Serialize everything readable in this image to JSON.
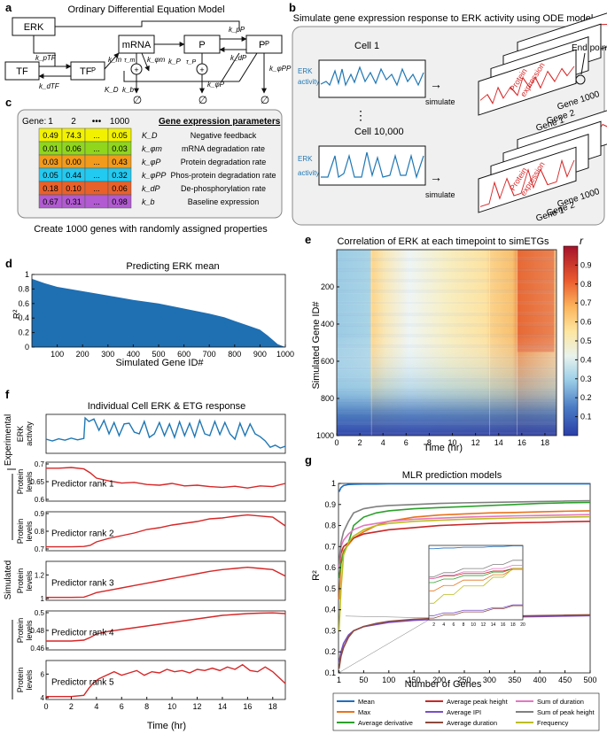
{
  "panel_a": {
    "letter": "a",
    "title": "Ordinary Differential Equation Model",
    "nodes": {
      "erk": "ERK",
      "mrna": "mRNA",
      "tf": "TF",
      "tfp": "TFᴾ",
      "p": "P",
      "pp": "Pᴾ"
    },
    "rates": {
      "k_ptf": "k_pTF",
      "k_dtf": "k_dTF",
      "k_m": "k_m",
      "tau_m": "τ_m",
      "k_phim": "k_φm",
      "k_d": "K_D",
      "k_b": "k_b",
      "k_p": "k_P",
      "tau_p": "τ_P",
      "k_phip": "k_φP",
      "k_pp": "k_pP",
      "k_dp": "k_dP",
      "k_phipp": "k_φPP"
    },
    "null_symbol": "∅"
  },
  "panel_b": {
    "letter": "b",
    "title": "Simulate gene expression response to ERK activity using ODE model",
    "cell1": "Cell 1",
    "cell2": "Cell 10,000",
    "erk_activity_line1": "ERK",
    "erk_activity_line2": "activity",
    "simulate": "simulate",
    "protein_line1": "Protein",
    "protein_line2": "expression",
    "gene1": "Gene 1",
    "gene2": "Gene 2",
    "gene1000": "Gene 1000",
    "end_point": "End point",
    "ellipsis": "⋮",
    "arrow": "→"
  },
  "panel_c": {
    "letter": "c",
    "gene_label": "Gene:",
    "columns": [
      "1",
      "2",
      "•••",
      "1000"
    ],
    "params_header": "Gene expression parameters",
    "rows": [
      {
        "values": [
          "0.49",
          "74.3",
          "...",
          "0.05"
        ],
        "symbol": "K_D",
        "desc": "Negative feedback",
        "color": "#f2f200"
      },
      {
        "values": [
          "0.01",
          "0.06",
          "...",
          "0.03"
        ],
        "symbol": "k_φm",
        "desc": "mRNA degradation rate",
        "color": "#8fd61c"
      },
      {
        "values": [
          "0.03",
          "0.00",
          "...",
          "0.43"
        ],
        "symbol": "k_φP",
        "desc": "Protein degradation rate",
        "color": "#f29a1b"
      },
      {
        "values": [
          "0.05",
          "0.44",
          "...",
          "0.32"
        ],
        "symbol": "k_φPP",
        "desc": "Phos-protein degradation rate",
        "color": "#22c9f0"
      },
      {
        "values": [
          "0.18",
          "0.10",
          "...",
          "0.06"
        ],
        "symbol": "k_dP",
        "desc": "De-phosphorylation rate",
        "color": "#e8612a"
      },
      {
        "values": [
          "0.67",
          "0.31",
          "...",
          "0.98"
        ],
        "symbol": "k_b",
        "desc": "Baseline expression",
        "color": "#b15ad1"
      }
    ],
    "caption": "Create 1000 genes with randomly assigned properties"
  },
  "panel_d": {
    "letter": "d",
    "chart_data": {
      "type": "area",
      "title": "Predicting ERK mean",
      "xlabel": "Simulated Gene ID#",
      "ylabel": "R²",
      "xlim": [
        0,
        1000
      ],
      "ylim": [
        0,
        1
      ],
      "xticks": [
        "100",
        "200",
        "300",
        "400",
        "500",
        "600",
        "700",
        "800",
        "900",
        "1000"
      ],
      "yticks": [
        "0",
        "0.2",
        "0.4",
        "0.6",
        "0.8",
        "1"
      ],
      "x": [
        0,
        50,
        100,
        200,
        300,
        400,
        500,
        600,
        700,
        760,
        800,
        850,
        900,
        930,
        950,
        970,
        1000
      ],
      "y": [
        0.94,
        0.88,
        0.83,
        0.77,
        0.71,
        0.65,
        0.6,
        0.53,
        0.46,
        0.41,
        0.36,
        0.3,
        0.24,
        0.16,
        0.1,
        0.04,
        0.0
      ],
      "color": "#1f6fb3"
    }
  },
  "panel_e": {
    "letter": "e",
    "chart_data": {
      "type": "heatmap",
      "title": "Correlation of ERK at each timepoint to simETGs",
      "xlabel": "Time (hr)",
      "ylabel": "Simulated Gene ID#",
      "xlim": [
        0,
        19
      ],
      "ylim": [
        0,
        1000
      ],
      "xticks": [
        "0",
        "2",
        "4",
        "6",
        "8",
        "10",
        "12",
        "14",
        "16",
        "18"
      ],
      "yticks": [
        "200",
        "400",
        "600",
        "800",
        "1000"
      ],
      "colorbar_label": "r",
      "colorbar_ticks": [
        "0.1",
        "0.2",
        "0.3",
        "0.4",
        "0.5",
        "0.6",
        "0.7",
        "0.8",
        "0.9"
      ],
      "colorbar_range": [
        0.0,
        1.0
      ],
      "transitions_hr": [
        3.0,
        13.2,
        15.6
      ]
    }
  },
  "panel_f": {
    "letter": "f",
    "title": "Individual Cell ERK & ETG response",
    "experimental_label": "Experimental",
    "simulated_label": "Simulated",
    "xlabel": "Time (hr)",
    "xticks": [
      "0",
      "2",
      "4",
      "6",
      "8",
      "10",
      "12",
      "14",
      "16",
      "18"
    ],
    "chart_data": [
      {
        "type": "line",
        "ylabel": "ERK activity",
        "color": "#1f77b4",
        "xlim": [
          0,
          19
        ],
        "yticks": [],
        "x": [
          0,
          0.5,
          1,
          1.5,
          2,
          2.5,
          3,
          3.1,
          3.4,
          3.8,
          4.2,
          4.6,
          5,
          5.4,
          5.8,
          6.2,
          6.6,
          7,
          7.4,
          7.8,
          8.2,
          8.6,
          9,
          9.4,
          9.8,
          10.2,
          10.6,
          11,
          11.4,
          11.8,
          12.2,
          12.6,
          13,
          13.4,
          13.8,
          14.2,
          14.6,
          15,
          15.4,
          15.8,
          16.2,
          16.6,
          17,
          17.4,
          17.8,
          18.2,
          18.6,
          19
        ],
        "y": [
          0.35,
          0.3,
          0.36,
          0.32,
          0.38,
          0.33,
          0.37,
          0.95,
          0.85,
          0.92,
          0.6,
          0.88,
          0.5,
          0.82,
          0.45,
          0.78,
          0.8,
          0.55,
          0.5,
          0.85,
          0.4,
          0.5,
          0.82,
          0.45,
          0.78,
          0.4,
          0.84,
          0.45,
          0.8,
          0.42,
          0.88,
          0.5,
          0.45,
          0.85,
          0.48,
          0.82,
          0.5,
          0.35,
          0.8,
          0.45,
          0.78,
          0.5,
          0.42,
          0.3,
          0.12,
          0.18,
          0.1,
          0.15
        ]
      },
      {
        "type": "line",
        "label": "Predictor rank 1",
        "ylabel": "Protein levels",
        "color": "#d62728",
        "xlim": [
          0,
          19
        ],
        "ylim": [
          0.6,
          0.7
        ],
        "yticks": [
          "0.6",
          "0.65",
          "0.7"
        ],
        "x": [
          0,
          1,
          2,
          3,
          3.5,
          4,
          5,
          6,
          7,
          8,
          9,
          10,
          11,
          12,
          13,
          14,
          15,
          16,
          17,
          18,
          19
        ],
        "y": [
          0.688,
          0.688,
          0.69,
          0.686,
          0.675,
          0.66,
          0.652,
          0.646,
          0.648,
          0.642,
          0.64,
          0.645,
          0.638,
          0.64,
          0.636,
          0.634,
          0.637,
          0.632,
          0.638,
          0.636,
          0.645
        ]
      },
      {
        "type": "line",
        "label": "Predictor rank 2",
        "ylabel": "Protein levels",
        "color": "#d62728",
        "xlim": [
          0,
          19
        ],
        "ylim": [
          0.7,
          0.9
        ],
        "yticks": [
          "0.7",
          "0.8",
          "0.9"
        ],
        "x": [
          0,
          1,
          2,
          3,
          3.5,
          4,
          5,
          6,
          7,
          8,
          9,
          10,
          11,
          12,
          13,
          14,
          15,
          16,
          17,
          18,
          19
        ],
        "y": [
          0.712,
          0.712,
          0.712,
          0.714,
          0.72,
          0.74,
          0.76,
          0.775,
          0.79,
          0.81,
          0.82,
          0.835,
          0.845,
          0.855,
          0.87,
          0.875,
          0.885,
          0.892,
          0.886,
          0.88,
          0.83
        ]
      },
      {
        "type": "line",
        "label": "Predictor rank 3",
        "ylabel": "Protein levels",
        "color": "#d62728",
        "xlim": [
          0,
          19
        ],
        "ylim": [
          1.0,
          1.3
        ],
        "yticks": [
          "1",
          "1.2"
        ],
        "x": [
          0,
          1,
          2,
          3,
          3.5,
          4,
          5,
          6,
          7,
          8,
          9,
          10,
          11,
          12,
          13,
          14,
          15,
          16,
          17,
          18,
          19
        ],
        "y": [
          1.01,
          1.01,
          1.01,
          1.012,
          1.03,
          1.05,
          1.07,
          1.09,
          1.11,
          1.13,
          1.15,
          1.17,
          1.19,
          1.21,
          1.23,
          1.245,
          1.255,
          1.265,
          1.255,
          1.245,
          1.19
        ]
      },
      {
        "type": "line",
        "label": "Predictor rank 4",
        "ylabel": "Protein levels",
        "color": "#d62728",
        "xlim": [
          0,
          19
        ],
        "ylim": [
          0.46,
          0.5
        ],
        "yticks": [
          "0.46",
          "0.48",
          "0.5"
        ],
        "x": [
          0,
          1,
          2,
          3,
          3.5,
          4,
          5,
          6,
          7,
          8,
          9,
          10,
          11,
          12,
          13,
          14,
          15,
          16,
          17,
          18,
          19
        ],
        "y": [
          0.468,
          0.468,
          0.468,
          0.469,
          0.472,
          0.476,
          0.479,
          0.481,
          0.483,
          0.485,
          0.487,
          0.489,
          0.491,
          0.493,
          0.495,
          0.497,
          0.498,
          0.499,
          0.4995,
          0.4998,
          0.499
        ]
      },
      {
        "type": "line",
        "label": "Predictor rank 5",
        "ylabel": "Protein levels",
        "color": "#d62728",
        "xlim": [
          0,
          19
        ],
        "ylim": [
          4,
          7
        ],
        "yticks": [
          "4",
          "6"
        ],
        "x": [
          0,
          1,
          2,
          3,
          3.4,
          3.8,
          4.2,
          4.8,
          5.4,
          6,
          6.6,
          7.2,
          7.8,
          8.4,
          9,
          9.6,
          10.2,
          10.8,
          11.4,
          12,
          12.6,
          13.2,
          13.8,
          14.4,
          15,
          15.6,
          16.2,
          16.8,
          17.4,
          18,
          18.6,
          19
        ],
        "y": [
          4.1,
          4.1,
          4.1,
          4.2,
          4.8,
          5.3,
          5.6,
          5.9,
          6.2,
          5.9,
          6.1,
          6.3,
          5.9,
          6.2,
          6.1,
          6.4,
          6.2,
          6.3,
          6.1,
          6.4,
          6.3,
          6.5,
          6.3,
          6.6,
          6.4,
          6.8,
          6.3,
          6.2,
          6.6,
          6.2,
          5.6,
          5.2
        ]
      }
    ]
  },
  "panel_g": {
    "letter": "g",
    "chart_data": {
      "type": "line",
      "title": "MLR prediction models",
      "xlabel": "Number of Genes",
      "ylabel": "R²",
      "xlim": [
        0,
        500
      ],
      "ylim": [
        0.1,
        1.0
      ],
      "xticks": [
        "1",
        "50",
        "100",
        "150",
        "200",
        "250",
        "300",
        "350",
        "400",
        "450",
        "500"
      ],
      "yticks": [
        "0.1",
        "0.2",
        "0.3",
        "0.4",
        "0.5",
        "0.6",
        "0.7",
        "0.8",
        "0.9",
        "1"
      ],
      "inset_xticks": [
        "2",
        "4",
        "6",
        "8",
        "10",
        "12",
        "14",
        "16",
        "18",
        "20"
      ],
      "x": [
        1,
        5,
        10,
        20,
        30,
        50,
        75,
        100,
        150,
        200,
        250,
        300,
        350,
        400,
        450,
        500
      ],
      "series": [
        {
          "name": "Mean",
          "color": "#1f6fc0",
          "values": [
            0.96,
            0.98,
            0.99,
            0.995,
            0.996,
            0.997,
            0.997,
            0.998,
            0.998,
            0.998,
            0.998,
            0.998,
            0.998,
            0.998,
            0.998,
            0.998
          ]
        },
        {
          "name": "Max",
          "color": "#e8731c",
          "values": [
            0.45,
            0.63,
            0.68,
            0.71,
            0.74,
            0.77,
            0.8,
            0.82,
            0.84,
            0.85,
            0.855,
            0.86,
            0.862,
            0.865,
            0.868,
            0.87
          ]
        },
        {
          "name": "Average derivative",
          "color": "#2ca02c",
          "values": [
            0.55,
            0.62,
            0.67,
            0.72,
            0.8,
            0.84,
            0.86,
            0.87,
            0.88,
            0.885,
            0.89,
            0.895,
            0.9,
            0.905,
            0.908,
            0.91
          ]
        },
        {
          "name": "Average peak height",
          "color": "#c82828",
          "values": [
            0.6,
            0.67,
            0.7,
            0.72,
            0.74,
            0.76,
            0.77,
            0.78,
            0.79,
            0.8,
            0.805,
            0.81,
            0.813,
            0.815,
            0.818,
            0.82
          ]
        },
        {
          "name": "Average IPI",
          "color": "#7a4fc8",
          "values": [
            0.15,
            0.2,
            0.24,
            0.28,
            0.3,
            0.32,
            0.33,
            0.34,
            0.35,
            0.355,
            0.36,
            0.363,
            0.366,
            0.368,
            0.37,
            0.372
          ]
        },
        {
          "name": "Average duration",
          "color": "#8c4b3c",
          "values": [
            0.12,
            0.18,
            0.22,
            0.27,
            0.3,
            0.32,
            0.335,
            0.345,
            0.355,
            0.36,
            0.365,
            0.368,
            0.37,
            0.372,
            0.374,
            0.376
          ]
        },
        {
          "name": "Sum of duration",
          "color": "#e377c2",
          "values": [
            0.6,
            0.7,
            0.73,
            0.76,
            0.78,
            0.8,
            0.81,
            0.82,
            0.83,
            0.835,
            0.84,
            0.843,
            0.846,
            0.848,
            0.85,
            0.852
          ]
        },
        {
          "name": "Sum of peak height",
          "color": "#808080",
          "values": [
            0.62,
            0.72,
            0.77,
            0.82,
            0.86,
            0.88,
            0.89,
            0.895,
            0.9,
            0.905,
            0.908,
            0.91,
            0.912,
            0.914,
            0.916,
            0.918
          ]
        },
        {
          "name": "Frequency",
          "color": "#bcbd22",
          "values": [
            0.3,
            0.5,
            0.66,
            0.72,
            0.75,
            0.78,
            0.8,
            0.81,
            0.82,
            0.825,
            0.83,
            0.833,
            0.836,
            0.838,
            0.84,
            0.842
          ]
        }
      ]
    }
  }
}
